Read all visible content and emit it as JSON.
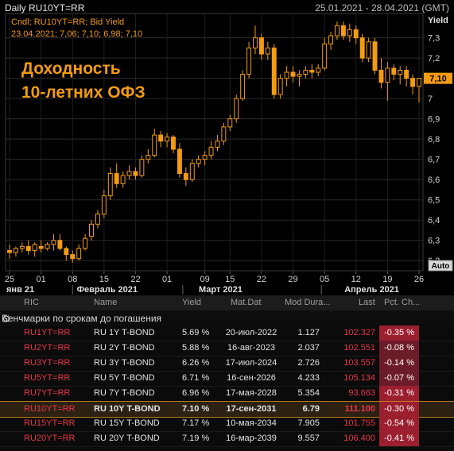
{
  "header": {
    "title": "Daily RU10YT=RR",
    "range": "25.01.2021 - 28.04.2021",
    "tz": "(GMT)"
  },
  "chart_data": {
    "type": "candlestick",
    "legend_line1": "Cndl; RU10YT=RR; Bid Yield",
    "legend_line2": "23.04.2021; 7,06; 7,10; 6,98; 7,10",
    "annotation_line1": "Доходность",
    "annotation_line2": "10-летних ОФЗ",
    "ylabel": "Yield",
    "ylim": [
      6.15,
      7.42
    ],
    "yticks": [
      "6,2",
      "6,3",
      "6,4",
      "6,5",
      "6,6",
      "6,7",
      "6,8",
      "6,9",
      "7",
      "7,1",
      "7,2",
      "7,3"
    ],
    "ytick_values": [
      6.2,
      6.3,
      6.4,
      6.5,
      6.6,
      6.7,
      6.8,
      6.9,
      7.0,
      7.1,
      7.2,
      7.3
    ],
    "last_value_label": "7,10",
    "last_value": 7.1,
    "auto_label": "Auto",
    "x_tick_labels": [
      "25",
      "01",
      "08",
      "15",
      "22",
      "01",
      "09",
      "15",
      "22",
      "29",
      "05",
      "12",
      "19",
      "26"
    ],
    "x_tick_index": [
      0,
      5,
      10,
      15,
      20,
      25,
      31,
      35,
      40,
      45,
      50,
      55,
      60,
      65
    ],
    "month_labels": [
      "янв 21",
      "Февраль 2021",
      "Март 2021",
      "Апрель 2021"
    ],
    "month_index": [
      0,
      15.5,
      33.5,
      57.5
    ],
    "candle_color": "#f39c12",
    "candles": [
      [
        6.25,
        6.28,
        6.21,
        6.24
      ],
      [
        6.24,
        6.27,
        6.22,
        6.26
      ],
      [
        6.26,
        6.29,
        6.24,
        6.27
      ],
      [
        6.27,
        6.3,
        6.23,
        6.25
      ],
      [
        6.25,
        6.29,
        6.22,
        6.28
      ],
      [
        6.27,
        6.3,
        6.24,
        6.26
      ],
      [
        6.26,
        6.29,
        6.25,
        6.28
      ],
      [
        6.28,
        6.33,
        6.25,
        6.3
      ],
      [
        6.3,
        6.33,
        6.25,
        6.26
      ],
      [
        6.26,
        6.27,
        6.2,
        6.23
      ],
      [
        6.23,
        6.25,
        6.19,
        6.21
      ],
      [
        6.21,
        6.28,
        6.2,
        6.26
      ],
      [
        6.26,
        6.33,
        6.25,
        6.31
      ],
      [
        6.32,
        6.4,
        6.3,
        6.38
      ],
      [
        6.38,
        6.45,
        6.36,
        6.43
      ],
      [
        6.43,
        6.55,
        6.41,
        6.52
      ],
      [
        6.52,
        6.66,
        6.5,
        6.63
      ],
      [
        6.63,
        6.68,
        6.56,
        6.58
      ],
      [
        6.58,
        6.64,
        6.56,
        6.62
      ],
      [
        6.62,
        6.67,
        6.6,
        6.64
      ],
      [
        6.64,
        6.66,
        6.6,
        6.62
      ],
      [
        6.62,
        6.72,
        6.61,
        6.7
      ],
      [
        6.7,
        6.75,
        6.68,
        6.72
      ],
      [
        6.72,
        6.85,
        6.71,
        6.82
      ],
      [
        6.82,
        6.84,
        6.76,
        6.79
      ],
      [
        6.79,
        6.83,
        6.76,
        6.81
      ],
      [
        6.81,
        6.82,
        6.73,
        6.75
      ],
      [
        6.75,
        6.78,
        6.61,
        6.63
      ],
      [
        6.63,
        6.66,
        6.57,
        6.6
      ],
      [
        6.6,
        6.7,
        6.59,
        6.68
      ],
      [
        6.68,
        6.72,
        6.66,
        6.7
      ],
      [
        6.7,
        6.74,
        6.67,
        6.72
      ],
      [
        6.72,
        6.79,
        6.7,
        6.76
      ],
      [
        6.76,
        6.82,
        6.74,
        6.79
      ],
      [
        6.79,
        6.88,
        6.77,
        6.86
      ],
      [
        6.86,
        6.92,
        6.84,
        6.9
      ],
      [
        6.9,
        7.02,
        6.88,
        7.0
      ],
      [
        7.0,
        7.14,
        6.99,
        7.12
      ],
      [
        7.12,
        7.28,
        7.1,
        7.25
      ],
      [
        7.25,
        7.36,
        7.22,
        7.3
      ],
      [
        7.3,
        7.32,
        7.19,
        7.22
      ],
      [
        7.22,
        7.28,
        7.19,
        7.25
      ],
      [
        7.25,
        7.27,
        7.0,
        7.02
      ],
      [
        7.02,
        7.12,
        7.0,
        7.1
      ],
      [
        7.1,
        7.16,
        7.06,
        7.13
      ],
      [
        7.13,
        7.16,
        7.08,
        7.11
      ],
      [
        7.11,
        7.14,
        7.06,
        7.12
      ],
      [
        7.12,
        7.16,
        7.1,
        7.14
      ],
      [
        7.14,
        7.17,
        7.1,
        7.13
      ],
      [
        7.13,
        7.17,
        7.11,
        7.15
      ],
      [
        7.15,
        7.3,
        7.14,
        7.27
      ],
      [
        7.27,
        7.33,
        7.24,
        7.31
      ],
      [
        7.31,
        7.38,
        7.29,
        7.36
      ],
      [
        7.36,
        7.38,
        7.29,
        7.31
      ],
      [
        7.31,
        7.37,
        7.28,
        7.34
      ],
      [
        7.34,
        7.36,
        7.27,
        7.3
      ],
      [
        7.3,
        7.32,
        7.18,
        7.2
      ],
      [
        7.2,
        7.3,
        7.18,
        7.28
      ],
      [
        7.28,
        7.3,
        7.12,
        7.14
      ],
      [
        7.14,
        7.2,
        7.05,
        7.08
      ],
      [
        7.08,
        7.18,
        6.99,
        7.15
      ],
      [
        7.15,
        7.17,
        7.09,
        7.12
      ],
      [
        7.12,
        7.16,
        7.07,
        7.14
      ],
      [
        7.14,
        7.16,
        7.06,
        7.1
      ],
      [
        7.1,
        7.12,
        7.02,
        7.06
      ],
      [
        7.06,
        7.1,
        6.98,
        7.1
      ]
    ]
  },
  "table": {
    "columns": [
      "RIC",
      "Name",
      "Yield",
      "Mat.Dat",
      "Mod Dura...",
      "Last",
      "Pct. Ch..."
    ],
    "group_label": "Бенчмарки по срокам до погашения",
    "rows": [
      {
        "ric": "RU1YT=RR",
        "name": "RU 1Y T-BOND",
        "yield": "5.69 %",
        "mat": "20-июл-2022",
        "dur": "1.127",
        "last": "102.327",
        "pct": "-0.35 %"
      },
      {
        "ric": "RU2YT=RR",
        "name": "RU 2Y T-BOND",
        "yield": "5.88 %",
        "mat": "16-авг-2023",
        "dur": "2.037",
        "last": "102.551",
        "pct": "-0.08 %"
      },
      {
        "ric": "RU3YT=RR",
        "name": "RU 3Y T-BOND",
        "yield": "6.26 %",
        "mat": "17-июл-2024",
        "dur": "2.726",
        "last": "103.557",
        "pct": "-0.14 %"
      },
      {
        "ric": "RU5YT=RR",
        "name": "RU 5Y T-BOND",
        "yield": "6.71 %",
        "mat": "16-сен-2026",
        "dur": "4.233",
        "last": "105.134",
        "pct": "-0.07 %"
      },
      {
        "ric": "RU7YT=RR",
        "name": "RU 7Y T-BOND",
        "yield": "6.96 %",
        "mat": "17-мая-2028",
        "dur": "5.354",
        "last": "93.663",
        "pct": "-0.31 %"
      },
      {
        "ric": "RU10YT=RR",
        "name": "RU 10Y T-BOND",
        "yield": "7.10 %",
        "mat": "17-сен-2031",
        "dur": "6.79",
        "last": "111.100",
        "pct": "-0.30 %"
      },
      {
        "ric": "RU15YT=RR",
        "name": "RU 15Y T-BOND",
        "yield": "7.17 %",
        "mat": "10-мая-2034",
        "dur": "7.905",
        "last": "101.755",
        "pct": "-0.54 %"
      },
      {
        "ric": "RU20YT=RR",
        "name": "RU 20Y T-BOND",
        "yield": "7.19 %",
        "mat": "16-мар-2039",
        "dur": "9.557",
        "last": "106.400",
        "pct": "-0.41 %"
      }
    ]
  }
}
